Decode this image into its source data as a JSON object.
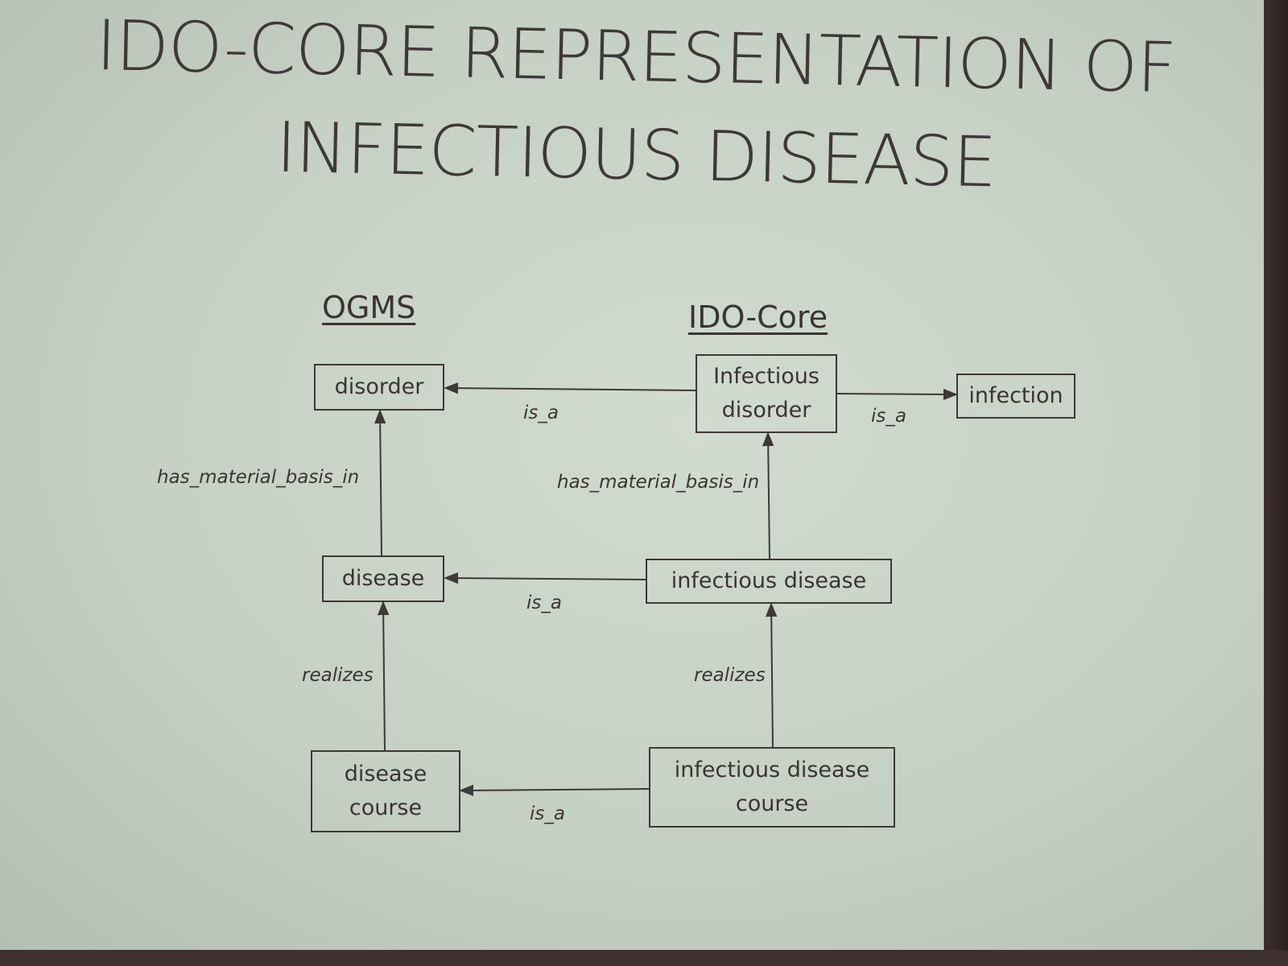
{
  "slide": {
    "title_line1": "IDO-CORE REPRESENTATION OF",
    "title_line2": "INFECTIOUS DISEASE"
  },
  "columns": {
    "left_heading": "OGMS",
    "right_heading": "IDO-Core"
  },
  "nodes": {
    "disorder": "disorder",
    "infectious_disorder_line1": "Infectious",
    "infectious_disorder_line2": "disorder",
    "infection": "infection",
    "disease": "disease",
    "infectious_disease": "infectious disease",
    "disease_course_line1": "disease",
    "disease_course_line2": "course",
    "infectious_disease_course_line1": "infectious disease",
    "infectious_disease_course_line2": "course"
  },
  "relations": {
    "is_a_top_left": "is_a",
    "is_a_top_right": "is_a",
    "has_material_basis_left": "has_material_basis_in",
    "has_material_basis_right": "has_material_basis_in",
    "is_a_middle": "is_a",
    "realizes_left": "realizes",
    "realizes_right": "realizes",
    "is_a_bottom": "is_a"
  },
  "colors": {
    "slide_background": "#c9d3c7",
    "ink": "#3a3434"
  }
}
